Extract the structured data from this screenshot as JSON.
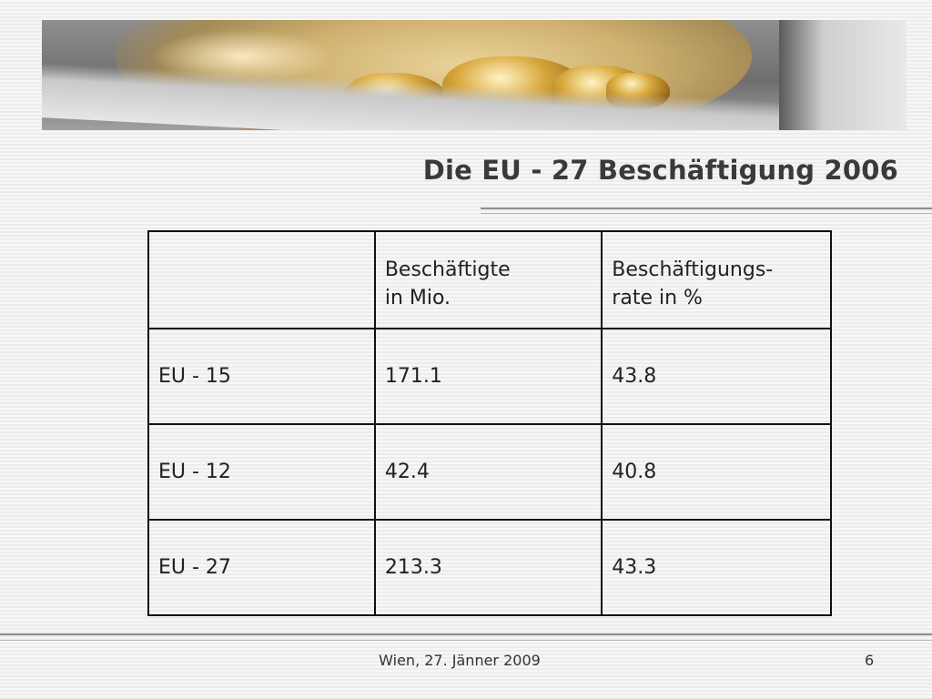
{
  "slide": {
    "title": "Die EU - 27 Beschäftigung 2006"
  },
  "banner": {
    "description_icon": "banner-image"
  },
  "table": {
    "headers": [
      {
        "line1": "",
        "line2": ""
      },
      {
        "line1": "Beschäftigte",
        "line2": "in Mio."
      },
      {
        "line1": "Beschäftigungs-",
        "line2": "rate in %"
      }
    ],
    "rows": [
      {
        "region": "EU - 15",
        "employed": "171.1",
        "rate": "43.8"
      },
      {
        "region": "EU - 12",
        "employed": "42.4",
        "rate": "40.8"
      },
      {
        "region": "EU - 27",
        "employed": "213.3",
        "rate": "43.3"
      }
    ]
  },
  "footer": {
    "text": "Wien, 27. Jänner 2009",
    "page_number": "6"
  },
  "colors": {
    "title": "#3a3a3a",
    "rule": "#8c8c8c",
    "table_border": "#111111"
  }
}
